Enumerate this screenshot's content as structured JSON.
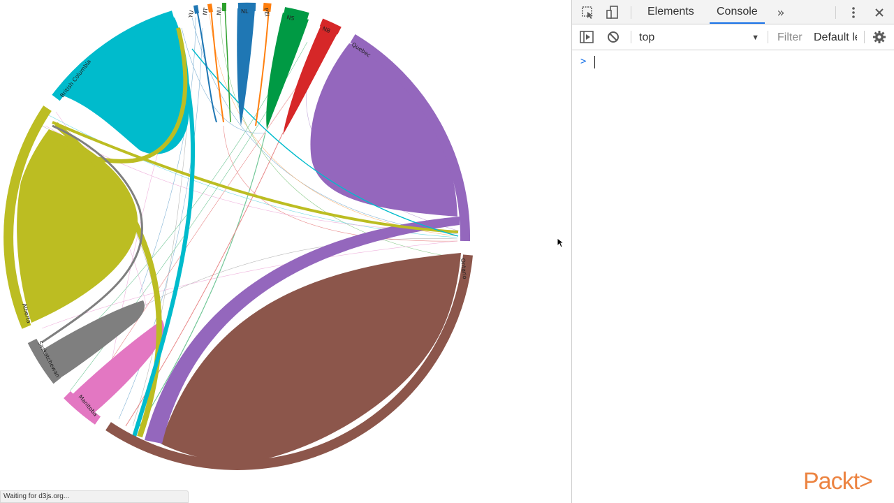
{
  "chord": {
    "labels": {
      "bc": "British Columbia",
      "yu": "YU",
      "nt": "NT",
      "nu": "NU",
      "nl": "NL",
      "pei": "PEI",
      "ns": "NS",
      "nb": "NB",
      "quebec": "Quebec",
      "ontario": "Ontario",
      "alberta": "Alberta",
      "saskatchewan": "Saskatchewan",
      "manitoba": "Manitoba"
    },
    "colors": {
      "british_columbia": "#00bbcc",
      "alberta": "#bcbd22",
      "saskatchewan": "#7f7f7f",
      "manitoba": "#e377c2",
      "ontario": "#8c564b",
      "quebec": "#9467bd",
      "nb": "#d62728",
      "ns": "#009a44",
      "pei": "#ff7f0e",
      "nl": "#1f77b4",
      "nu": "#2ca02c",
      "nt": "#ff7f0e",
      "yu": "#1f77b4"
    }
  },
  "devtools": {
    "tabs": {
      "elements": "Elements",
      "console": "Console"
    },
    "context": "top",
    "filter_placeholder": "Filter",
    "levels_label": "Default levels",
    "icons": {
      "inspect": "inspect-element-icon",
      "device": "device-toolbar-icon",
      "more_tabs": "more-tabs-icon",
      "menu": "kebab-menu-icon",
      "close": "close-icon",
      "sidebar": "console-sidebar-icon",
      "clear": "clear-console-icon",
      "settings": "gear-icon"
    }
  },
  "status_text": "Waiting for d3js.org...",
  "watermark": "Packt>"
}
